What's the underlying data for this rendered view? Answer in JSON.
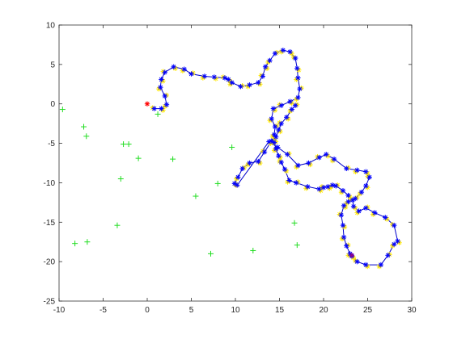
{
  "chart_data": {
    "type": "scatter",
    "title": "",
    "xlabel": "",
    "ylabel": "",
    "xlim": [
      -10,
      30
    ],
    "ylim": [
      -25,
      10
    ],
    "xticks": [
      -10,
      -5,
      0,
      5,
      10,
      15,
      20,
      25,
      30
    ],
    "yticks": [
      -25,
      -20,
      -15,
      -10,
      -5,
      0,
      5,
      10
    ],
    "grid": false,
    "legend": "none",
    "colors": {
      "path": "#0000cc",
      "path_markers": "#0000ff",
      "path_highlight": "#ffe800",
      "landmarks": "#22dd22",
      "start": "#ff0000",
      "end": "#8b008b",
      "axes": "#262626"
    },
    "series": [
      {
        "marker": "*",
        "role": "trajectory",
        "x": [
          0.8,
          1.6,
          2.2,
          2.0,
          1.5,
          1.6,
          2.0,
          3.0,
          4.2,
          5.0,
          6.5,
          7.6,
          8.8,
          9.2,
          9.6,
          10.6,
          11.6,
          12.6,
          13.1,
          13.4,
          13.9,
          14.5,
          15.4,
          16.2,
          16.8,
          17.0,
          17.1,
          17.3,
          17.1,
          16.2,
          15.2,
          14.3,
          14.1,
          14.5,
          14.4,
          14.1,
          13.3,
          12.6,
          11.6,
          10.8,
          10.3,
          9.9,
          10.2,
          13.8,
          14.8,
          15.9,
          17.1,
          18.3,
          19.5,
          20.3,
          21.2,
          22.6,
          23.8,
          24.8,
          25.2,
          24.8,
          24.3,
          23.6,
          22.8,
          22.3,
          22.0,
          22.2,
          22.3,
          22.6,
          23.0,
          23.2,
          23.8,
          24.8,
          26.5,
          27.3,
          28.0,
          28.4,
          28.0,
          27.0,
          25.8,
          24.8,
          24.0,
          23.4,
          23.3,
          22.8,
          22.2,
          21.4,
          21.0,
          20.5,
          20.0,
          19.5,
          18.2,
          16.9,
          16.1,
          15.6,
          15.2,
          14.9,
          14.6,
          14.4,
          14.6,
          14.9,
          15.2,
          15.8,
          16.4,
          16.8
        ],
        "y": [
          -0.6,
          -0.6,
          -0.1,
          1.0,
          2.1,
          3.1,
          4.0,
          4.7,
          4.4,
          3.8,
          3.5,
          3.4,
          3.3,
          3.1,
          2.7,
          2.2,
          2.4,
          2.7,
          3.5,
          4.7,
          5.5,
          6.4,
          6.8,
          6.6,
          5.8,
          4.5,
          3.3,
          1.9,
          0.8,
          0.3,
          -0.2,
          -0.6,
          -1.9,
          -2.9,
          -3.9,
          -4.7,
          -6.1,
          -7.3,
          -7.5,
          -8.2,
          -9.3,
          -10.1,
          -10.3,
          -4.8,
          -5.5,
          -6.4,
          -7.8,
          -7.5,
          -6.8,
          -6.4,
          -7.0,
          -8.2,
          -8.4,
          -8.6,
          -9.3,
          -10.4,
          -11.2,
          -12.0,
          -12.4,
          -12.9,
          -14.1,
          -15.4,
          -16.9,
          -18.0,
          -19.0,
          -19.3,
          -20.0,
          -20.4,
          -20.4,
          -19.2,
          -17.8,
          -17.4,
          -15.4,
          -14.4,
          -13.8,
          -13.2,
          -13.6,
          -13.0,
          -12.2,
          -11.6,
          -11.0,
          -10.4,
          -10.3,
          -10.5,
          -10.6,
          -10.8,
          -10.5,
          -10.0,
          -9.7,
          -8.3,
          -7.4,
          -6.6,
          -5.7,
          -4.9,
          -4.2,
          -3.3,
          -2.5,
          -1.7,
          -0.7,
          -0.2
        ]
      },
      {
        "marker": "+",
        "role": "landmarks",
        "x": [
          -9.6,
          -7.2,
          -6.9,
          -2.7,
          -2.1,
          -1.0,
          -3.0,
          2.9,
          1.2,
          5.5,
          8.0,
          9.6,
          -3.4,
          -8.2,
          -6.8,
          7.2,
          12.0,
          16.7,
          17.0
        ],
        "y": [
          -0.7,
          -2.9,
          -4.1,
          -5.1,
          -5.1,
          -6.9,
          -9.5,
          -7.0,
          -1.3,
          -11.7,
          -10.1,
          -5.5,
          -15.4,
          -17.7,
          -17.5,
          -19.0,
          -18.6,
          -15.1,
          -17.9
        ]
      },
      {
        "marker": "*",
        "role": "start",
        "x": [
          0.0
        ],
        "y": [
          0.0
        ]
      },
      {
        "marker": "*",
        "role": "end",
        "x": [
          23.2
        ],
        "y": [
          -19.2
        ]
      }
    ]
  }
}
